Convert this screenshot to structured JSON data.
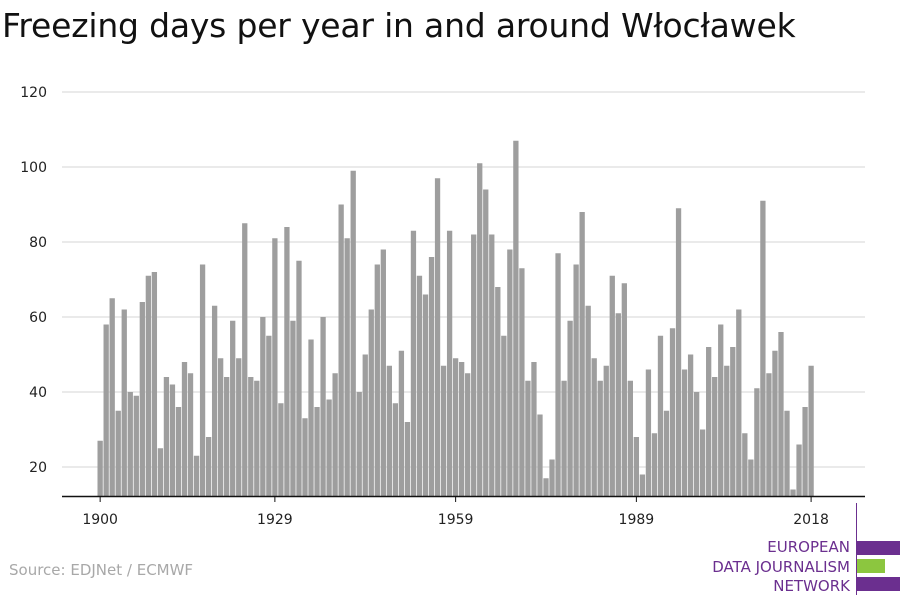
{
  "title": "Freezing days per year in and around Włocławek",
  "source": "Source: EDJNet / ECMWF",
  "logo": {
    "lines": [
      "EUROPEAN",
      "DATA JOURNALISM",
      "NETWORK"
    ],
    "colors": {
      "purple": "#6b2f8f",
      "green": "#8cc63f"
    }
  },
  "colors": {
    "bar": "#9e9e9e",
    "grid": "#d6d6d6",
    "axis": "#111111"
  },
  "chart_data": {
    "type": "bar",
    "title": "Freezing days per year in and around Włocławek",
    "xlabel": "",
    "ylabel": "",
    "x_ticks": [
      "1900",
      "1929",
      "1959",
      "1989",
      "2018"
    ],
    "y_ticks": [
      20,
      40,
      60,
      80,
      100,
      120
    ],
    "ylim": [
      12,
      122
    ],
    "grid": true,
    "categories": [
      1900,
      1901,
      1902,
      1903,
      1904,
      1905,
      1906,
      1907,
      1908,
      1909,
      1910,
      1911,
      1912,
      1913,
      1914,
      1915,
      1916,
      1917,
      1918,
      1919,
      1920,
      1921,
      1922,
      1923,
      1924,
      1925,
      1926,
      1927,
      1928,
      1929,
      1930,
      1931,
      1932,
      1933,
      1934,
      1935,
      1936,
      1937,
      1938,
      1939,
      1940,
      1941,
      1942,
      1943,
      1944,
      1945,
      1946,
      1947,
      1948,
      1949,
      1950,
      1951,
      1952,
      1953,
      1954,
      1955,
      1956,
      1957,
      1958,
      1959,
      1960,
      1961,
      1962,
      1963,
      1964,
      1965,
      1966,
      1967,
      1968,
      1969,
      1970,
      1971,
      1972,
      1973,
      1974,
      1975,
      1976,
      1977,
      1978,
      1979,
      1980,
      1981,
      1982,
      1983,
      1984,
      1985,
      1986,
      1987,
      1988,
      1989,
      1990,
      1991,
      1992,
      1993,
      1994,
      1995,
      1996,
      1997,
      1998,
      1999,
      2000,
      2001,
      2002,
      2003,
      2004,
      2005,
      2006,
      2007,
      2008,
      2009,
      2010,
      2011,
      2012,
      2013,
      2014,
      2015,
      2016,
      2017,
      2018
    ],
    "values": [
      27,
      58,
      65,
      35,
      62,
      40,
      39,
      64,
      71,
      72,
      25,
      44,
      42,
      36,
      48,
      45,
      23,
      74,
      28,
      63,
      49,
      44,
      59,
      49,
      85,
      44,
      43,
      60,
      55,
      81,
      37,
      84,
      59,
      75,
      33,
      54,
      36,
      60,
      38,
      45,
      90,
      81,
      99,
      40,
      50,
      62,
      74,
      78,
      47,
      37,
      51,
      32,
      83,
      71,
      66,
      76,
      97,
      47,
      83,
      49,
      48,
      45,
      82,
      101,
      94,
      82,
      68,
      55,
      78,
      107,
      73,
      43,
      48,
      34,
      17,
      22,
      77,
      43,
      59,
      74,
      88,
      63,
      49,
      43,
      47,
      71,
      61,
      69,
      43,
      28,
      18,
      46,
      29,
      55,
      35,
      57,
      89,
      46,
      50,
      40,
      30,
      52,
      44,
      58,
      47,
      52,
      62,
      29,
      22,
      41,
      91,
      45,
      51,
      56,
      35,
      14,
      26,
      36,
      47
    ]
  }
}
